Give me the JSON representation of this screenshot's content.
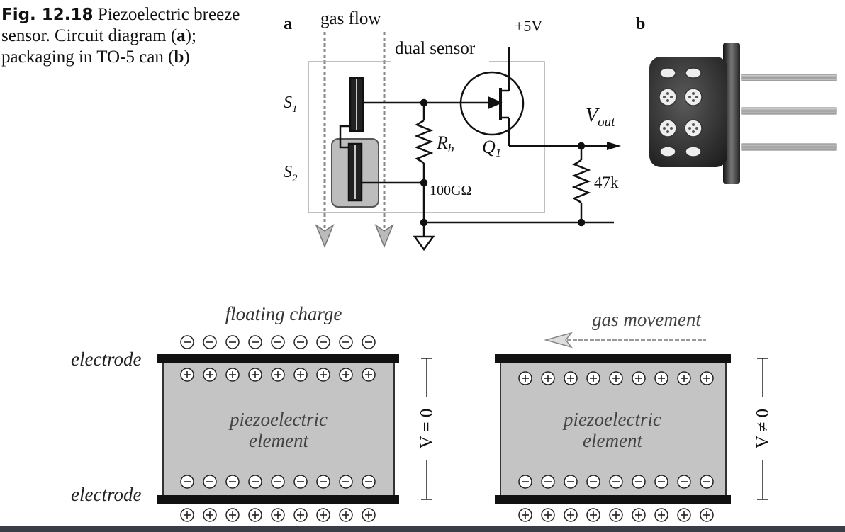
{
  "caption": {
    "fig_label": "Fig. 12.18",
    "text_1": "Piezoelectric breeze sensor. Circuit diagram (",
    "bold_a": "a",
    "text_2": "); packaging in TO-5 can (",
    "bold_b": "b",
    "text_3": ")"
  },
  "panel_a": {
    "label": "a",
    "gas_flow": "gas flow",
    "dual_sensor": "dual sensor",
    "supply": "+5V",
    "s1": "S",
    "s1_sub": "1",
    "s2": "S",
    "s2_sub": "2",
    "rb": "R",
    "rb_sub": "b",
    "q1": "Q",
    "q1_sub": "1",
    "rb_value": "100GΩ",
    "vout": "V",
    "vout_sub": "out",
    "load_value": "47k"
  },
  "panel_b": {
    "label": "b"
  },
  "bottom_left": {
    "title": "floating charge",
    "electrode_top": "electrode",
    "electrode_bottom": "electrode",
    "element_line1": "piezoelectric",
    "element_line2": "element",
    "voltage": "V = 0"
  },
  "bottom_right": {
    "title": "gas movement",
    "element_line1": "piezoelectric",
    "element_line2": "element",
    "voltage": "V ≠ 0"
  },
  "colors": {
    "element_fill": "#c4c4c4",
    "package_body": "#2b2b2b",
    "electrode": "#111111"
  }
}
